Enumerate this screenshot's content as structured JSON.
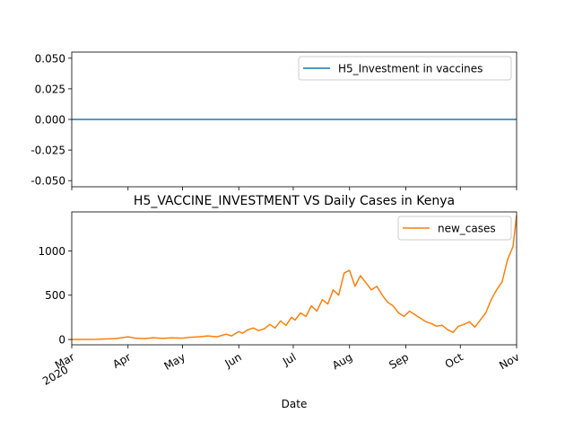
{
  "chart_data": [
    {
      "type": "line",
      "title": "",
      "xlabel": "",
      "ylabel": "",
      "ylim": [
        -0.055,
        0.055
      ],
      "yticks": [
        "0.050",
        "0.025",
        "0.000",
        "-0.025",
        "-0.050"
      ],
      "ytick_values": [
        0.05,
        0.025,
        0.0,
        -0.025,
        -0.05
      ],
      "legend_position": "upper right",
      "series": [
        {
          "name": "H5_Investment in vaccines",
          "color": "#1f77b4",
          "x_range": [
            "2020-03-01",
            "2020-11-01"
          ],
          "values": [
            0.0,
            0.0
          ]
        }
      ]
    },
    {
      "type": "line",
      "title": "H5_VACCINE_INVESTMENT VS Daily Cases in Kenya",
      "xlabel": "Date",
      "ylabel": "",
      "ylim": [
        -60,
        1440
      ],
      "yticks": [
        "0",
        "500",
        "1000"
      ],
      "ytick_values": [
        0,
        500,
        1000
      ],
      "xticks": [
        {
          "label": "Mar",
          "sub": "2020",
          "date": "2020-03-01"
        },
        {
          "label": "Apr",
          "date": "2020-04-01"
        },
        {
          "label": "May",
          "date": "2020-05-01"
        },
        {
          "label": "Jun",
          "date": "2020-06-01"
        },
        {
          "label": "Jul",
          "date": "2020-07-01"
        },
        {
          "label": "Aug",
          "date": "2020-08-01"
        },
        {
          "label": "Sep",
          "date": "2020-09-01"
        },
        {
          "label": "Oct",
          "date": "2020-10-01"
        },
        {
          "label": "Nov",
          "date": "2020-11-01"
        }
      ],
      "legend_position": "upper right",
      "series": [
        {
          "name": "new_cases",
          "color": "#ff7f0e",
          "x": [
            "2020-03-01",
            "2020-03-15",
            "2020-03-25",
            "2020-04-01",
            "2020-04-05",
            "2020-04-10",
            "2020-04-15",
            "2020-04-20",
            "2020-04-25",
            "2020-05-01",
            "2020-05-05",
            "2020-05-10",
            "2020-05-15",
            "2020-05-20",
            "2020-05-25",
            "2020-05-28",
            "2020-06-01",
            "2020-06-03",
            "2020-06-06",
            "2020-06-09",
            "2020-06-12",
            "2020-06-15",
            "2020-06-18",
            "2020-06-21",
            "2020-06-24",
            "2020-06-27",
            "2020-06-30",
            "2020-07-02",
            "2020-07-05",
            "2020-07-08",
            "2020-07-11",
            "2020-07-14",
            "2020-07-17",
            "2020-07-20",
            "2020-07-23",
            "2020-07-26",
            "2020-07-29",
            "2020-08-01",
            "2020-08-04",
            "2020-08-07",
            "2020-08-10",
            "2020-08-13",
            "2020-08-16",
            "2020-08-19",
            "2020-08-22",
            "2020-08-25",
            "2020-08-28",
            "2020-08-31",
            "2020-09-03",
            "2020-09-06",
            "2020-09-09",
            "2020-09-12",
            "2020-09-15",
            "2020-09-18",
            "2020-09-21",
            "2020-09-24",
            "2020-09-27",
            "2020-09-30",
            "2020-10-03",
            "2020-10-06",
            "2020-10-09",
            "2020-10-12",
            "2020-10-15",
            "2020-10-18",
            "2020-10-21",
            "2020-10-24",
            "2020-10-27",
            "2020-10-30",
            "2020-11-01"
          ],
          "values": [
            0,
            2,
            10,
            30,
            15,
            10,
            20,
            12,
            18,
            15,
            25,
            30,
            40,
            30,
            60,
            40,
            90,
            70,
            110,
            130,
            100,
            120,
            170,
            130,
            210,
            160,
            250,
            220,
            300,
            260,
            380,
            320,
            450,
            400,
            560,
            500,
            750,
            780,
            600,
            720,
            640,
            560,
            600,
            500,
            420,
            380,
            300,
            260,
            320,
            280,
            240,
            200,
            180,
            150,
            160,
            110,
            80,
            150,
            170,
            200,
            140,
            220,
            300,
            450,
            560,
            650,
            900,
            1050,
            1400
          ]
        }
      ]
    }
  ]
}
